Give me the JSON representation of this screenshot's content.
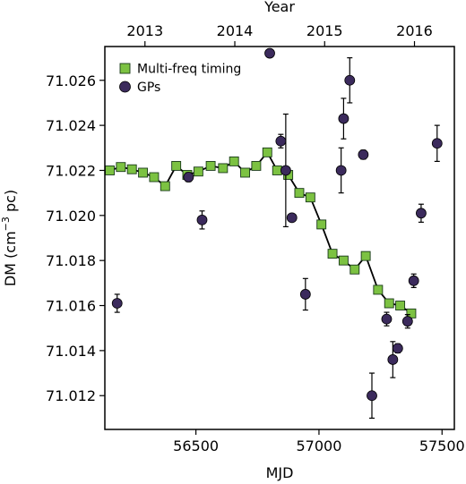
{
  "chart_data": {
    "type": "scatter",
    "xlabel": "MJD",
    "ylabel": "DM (cm",
    "ylabel_sup": "−3",
    "ylabel_tail": " pc)",
    "top_xlabel": "Year",
    "xlim": [
      56130,
      57550
    ],
    "ylim": [
      71.0105,
      71.0275
    ],
    "x_ticks": [
      56500,
      57000,
      57500
    ],
    "x_tick_labels": [
      "56500",
      "57000",
      "57500"
    ],
    "y_ticks": [
      71.012,
      71.014,
      71.016,
      71.018,
      71.02,
      71.022,
      71.024,
      71.026
    ],
    "y_tick_labels": [
      "71.012",
      "71.014",
      "71.016",
      "71.018",
      "71.020",
      "71.022",
      "71.024",
      "71.026"
    ],
    "top_ticks": [
      56293,
      56658,
      57023,
      57388
    ],
    "top_tick_labels": [
      "2013",
      "2014",
      "2015",
      "2016"
    ],
    "legend_position": "top-left",
    "legend": {
      "timing_label": "Multi-freq timing",
      "gps_label": "GPs"
    },
    "colors": {
      "timing_fill": "#7cc242",
      "timing_edge": "#1a3a1a",
      "gps_fill": "#3b2a5c",
      "line": "#000000"
    },
    "series": [
      {
        "name": "Multi-freq timing",
        "marker": "square",
        "connected": true,
        "points": [
          {
            "x": 56150,
            "y": 71.022,
            "err": 0.0001
          },
          {
            "x": 56195,
            "y": 71.02215,
            "err": 0.0001
          },
          {
            "x": 56240,
            "y": 71.02205,
            "err": 0.0001
          },
          {
            "x": 56285,
            "y": 71.0219,
            "err": 0.0001
          },
          {
            "x": 56330,
            "y": 71.0217,
            "err": 0.0001
          },
          {
            "x": 56375,
            "y": 71.0213,
            "err": 0.0001
          },
          {
            "x": 56420,
            "y": 71.0222,
            "err": 0.0001
          },
          {
            "x": 56465,
            "y": 71.0218,
            "err": 0.0001
          },
          {
            "x": 56510,
            "y": 71.02195,
            "err": 0.0001
          },
          {
            "x": 56560,
            "y": 71.0222,
            "err": 0.0001
          },
          {
            "x": 56610,
            "y": 71.0221,
            "err": 0.0001
          },
          {
            "x": 56655,
            "y": 71.0224,
            "err": 0.0001
          },
          {
            "x": 56700,
            "y": 71.0219,
            "err": 0.0001
          },
          {
            "x": 56745,
            "y": 71.0222,
            "err": 0.0001
          },
          {
            "x": 56790,
            "y": 71.0228,
            "err": 0.0002
          },
          {
            "x": 56830,
            "y": 71.022,
            "err": 0.0001
          },
          {
            "x": 56875,
            "y": 71.0218,
            "err": 0.0001
          },
          {
            "x": 56920,
            "y": 71.021,
            "err": 0.0001
          },
          {
            "x": 56965,
            "y": 71.0208,
            "err": 0.0001
          },
          {
            "x": 57010,
            "y": 71.0196,
            "err": 0.0001
          },
          {
            "x": 57055,
            "y": 71.0183,
            "err": 0.0001
          },
          {
            "x": 57100,
            "y": 71.018,
            "err": 0.0001
          },
          {
            "x": 57145,
            "y": 71.0176,
            "err": 0.0001
          },
          {
            "x": 57190,
            "y": 71.0182,
            "err": 0.0001
          },
          {
            "x": 57240,
            "y": 71.0167,
            "err": 0.0001
          },
          {
            "x": 57285,
            "y": 71.0161,
            "err": 0.0001
          },
          {
            "x": 57330,
            "y": 71.016,
            "err": 0.0001
          },
          {
            "x": 57375,
            "y": 71.01565,
            "err": 0.0001
          }
        ]
      },
      {
        "name": "GPs",
        "marker": "circle",
        "connected": false,
        "points": [
          {
            "x": 56180,
            "y": 71.0161,
            "err": 0.0004
          },
          {
            "x": 56470,
            "y": 71.0217,
            "err": 0.0002
          },
          {
            "x": 56525,
            "y": 71.0198,
            "err": 0.0004
          },
          {
            "x": 56800,
            "y": 71.0272,
            "err": 0.0001
          },
          {
            "x": 56845,
            "y": 71.0233,
            "err": 0.0003
          },
          {
            "x": 56865,
            "y": 71.022,
            "err": 0.0025
          },
          {
            "x": 56890,
            "y": 71.0199,
            "err": 0.0001
          },
          {
            "x": 56945,
            "y": 71.0165,
            "err": 0.0007
          },
          {
            "x": 57090,
            "y": 71.022,
            "err": 0.001
          },
          {
            "x": 57100,
            "y": 71.0243,
            "err": 0.0009
          },
          {
            "x": 57125,
            "y": 71.026,
            "err": 0.001
          },
          {
            "x": 57180,
            "y": 71.0227,
            "err": 0.0002
          },
          {
            "x": 57215,
            "y": 71.012,
            "err": 0.001
          },
          {
            "x": 57275,
            "y": 71.0154,
            "err": 0.0003
          },
          {
            "x": 57300,
            "y": 71.0136,
            "err": 0.0008
          },
          {
            "x": 57320,
            "y": 71.0141,
            "err": 0.0002
          },
          {
            "x": 57360,
            "y": 71.0153,
            "err": 0.0003
          },
          {
            "x": 57385,
            "y": 71.0171,
            "err": 0.0003
          },
          {
            "x": 57415,
            "y": 71.0201,
            "err": 0.0004
          },
          {
            "x": 57480,
            "y": 71.0232,
            "err": 0.0008
          }
        ]
      }
    ]
  }
}
